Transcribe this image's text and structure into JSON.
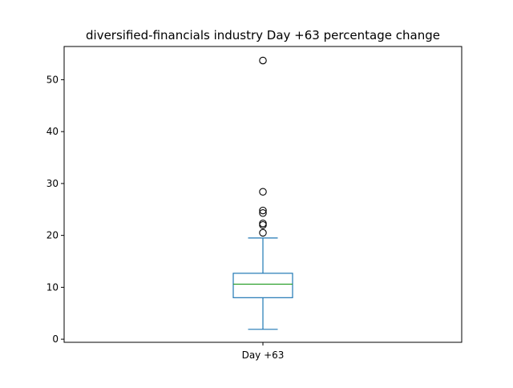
{
  "chart_data": {
    "type": "box",
    "title": "diversified-financials industry Day +63 percentage change",
    "xlabel": "",
    "ylabel": "",
    "categories": [
      "Day +63"
    ],
    "ylim": [
      -0.6,
      56.4
    ],
    "yticks": [
      0,
      10,
      20,
      30,
      40,
      50
    ],
    "grid": false,
    "boxes": [
      {
        "label": "Day +63",
        "whisker_low": 1.9,
        "q1": 8.0,
        "median": 10.6,
        "q3": 12.7,
        "whisker_high": 19.5,
        "outliers": [
          20.5,
          22.0,
          22.3,
          24.3,
          24.8,
          28.4,
          53.7
        ]
      }
    ]
  },
  "colors": {
    "box": "#1f77b4",
    "median": "#2ca02c",
    "axes": "#000000",
    "background": "#ffffff"
  }
}
